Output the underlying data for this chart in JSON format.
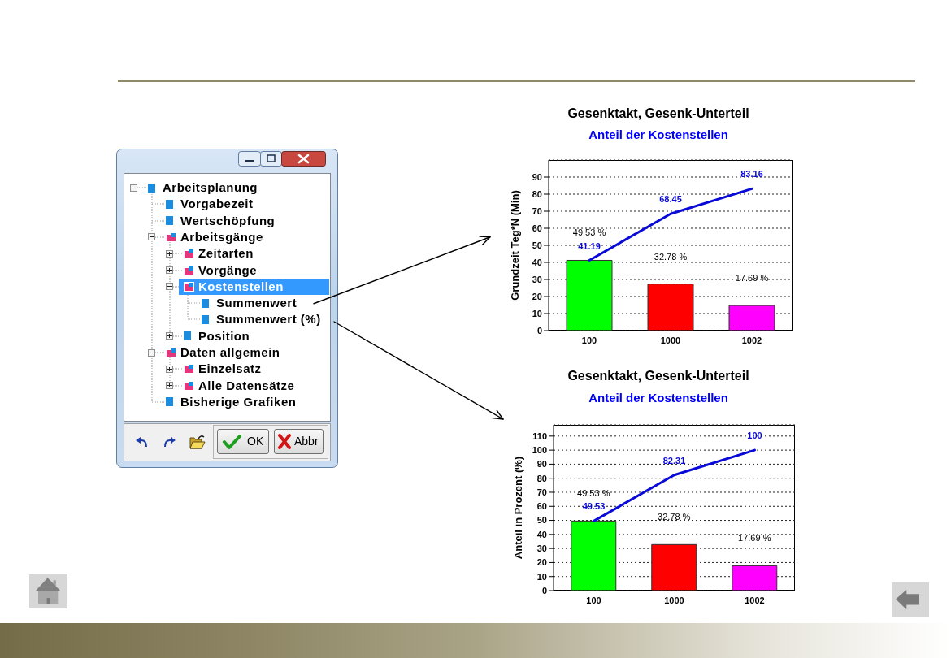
{
  "chart_data": [
    {
      "type": "other",
      "annotations": [
        "Arbeitsplanung",
        "Vorgabezeit",
        "Wertschöpfung",
        "Arbeitsgänge",
        "Zeitarten",
        "Vorgänge",
        "Kostenstellen",
        "Summenwert",
        "Summenwert (%)",
        "Position",
        "Daten allgemein",
        "Einzelsatz",
        "Alle Datensätze",
        "Bisherige Grafiken",
        "OK",
        "Abbr"
      ]
    },
    {
      "type": "bar",
      "title": "Gesenktakt, Gesenk-Unterteil",
      "subtitle": "Anteil der Kostenstellen",
      "ylabel": "Grundzeit Teg*N (Min)",
      "categories": [
        "100",
        "1000",
        "1002"
      ],
      "series": [
        {
          "type": "bar",
          "colors": [
            "#00ff00",
            "#ff0000",
            "#ff00ff"
          ],
          "values": [
            41.2,
            27.3,
            14.7
          ]
        },
        {
          "type": "line",
          "color": "#0a0ad8",
          "values": [
            41.19,
            68.45,
            83.16
          ],
          "value_labels": [
            "41.19",
            "68.45",
            "83.16"
          ]
        }
      ],
      "annotations": [
        {
          "text": "49.53 %",
          "x": "100",
          "y": 41.2
        },
        {
          "text": "32.78 %",
          "x": "1000",
          "y": 27.3
        },
        {
          "text": "17.69 %",
          "x": "1002",
          "y": 14.7
        }
      ],
      "ylim": [
        0,
        100
      ],
      "yticks": [
        0,
        10,
        20,
        30,
        40,
        50,
        60,
        70,
        80,
        90
      ],
      "grid": "y",
      "marker": "none"
    },
    {
      "type": "bar",
      "title": "Gesenktakt, Gesenk-Unterteil",
      "subtitle": "Anteil der Kostenstellen",
      "ylabel": "Anteil in Prozent (%)",
      "categories": [
        "100",
        "1000",
        "1002"
      ],
      "series": [
        {
          "type": "bar",
          "colors": [
            "#00ff00",
            "#ff0000",
            "#ff00ff"
          ],
          "values": [
            49.53,
            32.78,
            17.69
          ],
          "value_labels": [
            "49.53 %",
            "32.78 %",
            "17.69 %"
          ]
        },
        {
          "type": "line",
          "color": "#0a0ad8",
          "values": [
            49.53,
            82.31,
            100
          ],
          "value_labels": [
            "49.53",
            "82.31",
            "100"
          ]
        }
      ],
      "ylim": [
        0,
        118
      ],
      "yticks": [
        0,
        10,
        20,
        30,
        40,
        50,
        60,
        70,
        80,
        90,
        100,
        110
      ],
      "grid": "y",
      "marker": "none"
    }
  ]
}
